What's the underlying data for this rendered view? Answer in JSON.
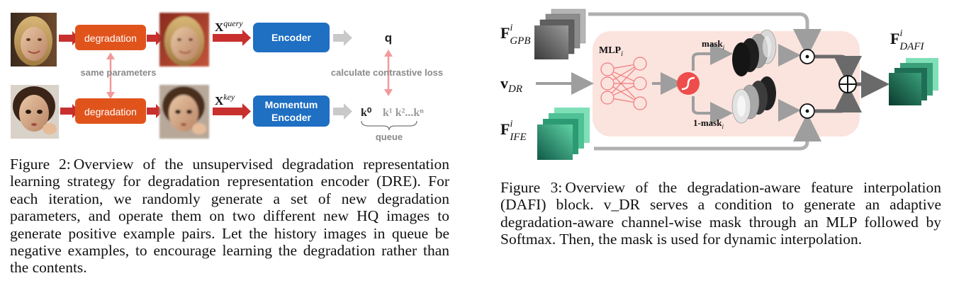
{
  "figure2": {
    "degradation_label_top": "degradation",
    "degradation_label_bottom": "degradation",
    "same_parameters": "same parameters",
    "x_query_base": "X",
    "x_query_sup": "query",
    "x_key_base": "X",
    "x_key_sup": "key",
    "encoder": "Encoder",
    "momentum_line1": "Momentum",
    "momentum_line2": "Encoder",
    "q": "q",
    "contrastive": "calculate contrastive loss",
    "k0": "k⁰",
    "k_rest": "k¹ k²...kⁿ",
    "queue": "queue",
    "caption_label": "Figure 2:",
    "caption_text": "Overview of the unsupervised degradation representation learning strategy for degradation representation encoder (DRE). For each iteration, we randomly generate a set of new degradation parameters, and operate them on two different new HQ images to generate positive example pairs. Let the history images in queue be negative examples, to encourage learning the degradation rather than the contents."
  },
  "figure3": {
    "f_gpb": "F",
    "f_gpb_sup": "i",
    "f_gpb_sub": "GPB",
    "v_dr": "v",
    "v_dr_sub": "DR",
    "f_ife": "F",
    "f_ife_sup": "i",
    "f_ife_sub": "IFE",
    "mlp": "MLP",
    "mlp_sub": "i",
    "mask": "mask",
    "mask_sub": "i",
    "one_mask": "1-mask",
    "one_mask_sub": "i",
    "f_dafi": "F",
    "f_dafi_sup": "i",
    "f_dafi_sub": "DAFI",
    "caption_label": "Figure 3:",
    "caption_text": "Overview of the degradation-aware feature interpolation (DAFI) block. v_DR serves a condition to generate an adaptive degradation-aware channel-wise mask through an MLP followed by Softmax. Then, the mask is used for dynamic interpolation."
  },
  "colors": {
    "degradation_orange": "#E0541C",
    "encoder_blue": "#1F6FC2",
    "arrow_red": "#C8302E",
    "panel_pink": "#FBE3DE",
    "sigmoid_red": "#EF4C4C",
    "teal_dark": "#0F5A48",
    "teal_light": "#5FD3A5"
  }
}
